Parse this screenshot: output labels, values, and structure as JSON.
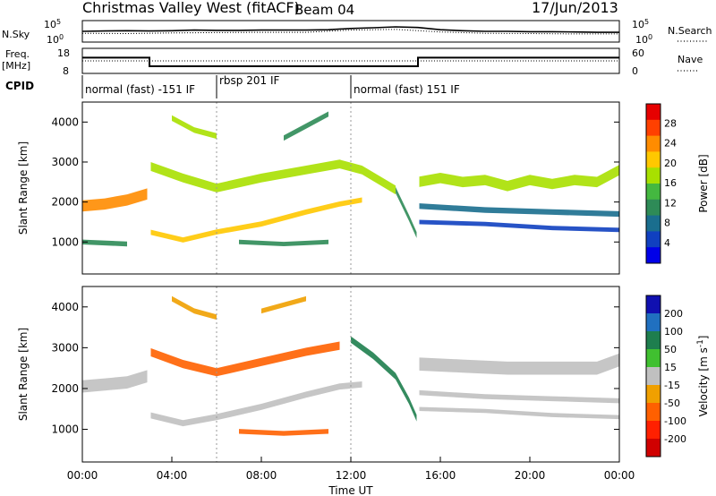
{
  "header": {
    "station": "Christmas Valley West (fitACF)",
    "beam": "Beam 04",
    "date": "17/Jun/2013"
  },
  "left_labels": {
    "nsky": "N.Sky",
    "freq_line1": "Freq.",
    "freq_line2": "[MHz]",
    "cpid": "CPID"
  },
  "right_labels": {
    "nsearch": "N.Search",
    "nave": "Nave"
  },
  "nsky_axis": {
    "ticks": [
      "10^5",
      "10^0"
    ]
  },
  "nsearch_axis": {
    "ticks": [
      "10^5",
      "10^0"
    ]
  },
  "freq_axis": {
    "ticks": [
      "18",
      "8"
    ]
  },
  "nave_axis": {
    "ticks": [
      "60",
      "0"
    ]
  },
  "cpid_segments": [
    {
      "label": "normal (fast) -151 IF"
    },
    {
      "label": "rbsp 201 IF"
    },
    {
      "label": "normal (fast) 151 IF"
    }
  ],
  "power_colorbar": {
    "label": "Power [dB]",
    "ticks": [
      "28",
      "24",
      "20",
      "16",
      "12",
      "8",
      "4"
    ],
    "colors": [
      "#e60000",
      "#ff4000",
      "#ff8c00",
      "#ffc800",
      "#a8e000",
      "#44b840",
      "#2e8b57",
      "#1a6e8e",
      "#1040c0",
      "#0000e8"
    ]
  },
  "velocity_colorbar": {
    "label": "Velocity [m s^-1]",
    "ticks": [
      "200",
      "100",
      "50",
      "15",
      "-15",
      "-50",
      "-100",
      "-200"
    ],
    "colors": [
      "#1010b0",
      "#2070c0",
      "#1e7e4e",
      "#40c030",
      "#c0c0c0",
      "#f0a000",
      "#ff6000",
      "#ff2000",
      "#d00000"
    ]
  },
  "chart_data": [
    {
      "type": "line",
      "panel": "N.Sky / N.Search",
      "x_unit": "hours UT",
      "xlim": [
        0,
        24
      ],
      "ylim_log10": [
        0,
        5
      ],
      "series": [
        {
          "key": "nsky",
          "x": [
            0,
            1,
            2,
            3,
            4,
            5,
            6,
            7,
            8,
            9,
            10,
            11,
            12,
            13,
            14,
            15,
            16,
            17,
            18,
            19,
            20,
            21,
            22,
            23,
            24
          ],
          "y_log10": [
            2.5,
            2.6,
            2.7,
            2.6,
            2.7,
            2.9,
            2.8,
            2.8,
            2.9,
            2.9,
            2.9,
            3.0,
            3.4,
            3.6,
            3.9,
            3.7,
            3.0,
            2.7,
            2.5,
            2.5,
            2.4,
            2.4,
            2.3,
            2.2,
            2.2
          ]
        },
        {
          "key": "nsearch",
          "x": [
            0,
            2,
            4,
            6,
            8,
            10,
            12,
            14,
            16,
            18,
            20,
            22,
            24
          ],
          "y_log10": [
            1.9,
            1.8,
            2.0,
            2.1,
            2.2,
            2.2,
            2.9,
            3.1,
            2.3,
            1.9,
            1.8,
            1.7,
            1.7
          ]
        }
      ]
    },
    {
      "type": "line",
      "panel": "Freq. / Nave",
      "x_unit": "hours UT",
      "xlim": [
        0,
        24
      ],
      "freq_ylim": [
        8,
        18
      ],
      "nave_ylim": [
        0,
        60
      ],
      "series": [
        {
          "key": "freq_mhz",
          "x": [
            0,
            3,
            3,
            15,
            15,
            24
          ],
          "y": [
            14.5,
            14.5,
            10.5,
            10.5,
            14.5,
            14.5
          ]
        },
        {
          "key": "nave",
          "x": [
            0,
            24
          ],
          "y": [
            30,
            30
          ]
        }
      ]
    },
    {
      "type": "heatmap",
      "panel": "Power",
      "x_label": "Time UT",
      "x_unit": "hours UT",
      "y_label": "Slant Range [km]",
      "y_unit": "km",
      "xlim": [
        0,
        24
      ],
      "ylim": [
        200,
        4500
      ],
      "x_ticks": [
        "00:00",
        "04:00",
        "08:00",
        "12:00",
        "16:00",
        "20:00",
        "00:00"
      ],
      "y_ticks": [
        1000,
        2000,
        3000,
        4000
      ],
      "bands": [
        {
          "points": [
            [
              0,
              1900
            ],
            [
              1,
              1950
            ],
            [
              2,
              2050
            ],
            [
              2.9,
              2200
            ]
          ],
          "width": 280,
          "value_db": 27
        },
        {
          "points": [
            [
              3,
              1250
            ],
            [
              4.5,
              1050
            ],
            [
              6,
              1250
            ],
            [
              8,
              1450
            ],
            [
              10,
              1750
            ],
            [
              11.5,
              1950
            ],
            [
              12.5,
              2050
            ]
          ],
          "width": 130,
          "value_db": 22
        },
        {
          "points": [
            [
              3,
              2900
            ],
            [
              4.5,
              2600
            ],
            [
              6,
              2350
            ],
            [
              8,
              2600
            ],
            [
              10,
              2800
            ],
            [
              11.5,
              2950
            ],
            [
              12.5,
              2800
            ],
            [
              14,
              2300
            ]
          ],
          "width": 220,
          "value_db": 18
        },
        {
          "points": [
            [
              14,
              2300
            ],
            [
              14.6,
              1600
            ],
            [
              15,
              1100
            ]
          ],
          "width": 150,
          "value_db": 14
        },
        {
          "points": [
            [
              15,
              2500
            ],
            [
              16,
              2600
            ],
            [
              17,
              2500
            ],
            [
              18,
              2550
            ],
            [
              19,
              2400
            ],
            [
              20,
              2550
            ],
            [
              21,
              2450
            ],
            [
              22,
              2550
            ],
            [
              23,
              2500
            ],
            [
              24,
              2800
            ]
          ],
          "width": 260,
          "value_db": 20
        },
        {
          "points": [
            [
              15,
              1900
            ],
            [
              18,
              1800
            ],
            [
              21,
              1750
            ],
            [
              24,
              1700
            ]
          ],
          "width": 140,
          "value_db": 11
        },
        {
          "points": [
            [
              15,
              1500
            ],
            [
              18,
              1450
            ],
            [
              21,
              1350
            ],
            [
              24,
              1300
            ]
          ],
          "width": 110,
          "value_db": 8
        },
        {
          "points": [
            [
              4,
              4100
            ],
            [
              5,
              3800
            ],
            [
              6,
              3650
            ]
          ],
          "width": 140,
          "value_db": 18
        },
        {
          "points": [
            [
              9,
              3600
            ],
            [
              10,
              3900
            ],
            [
              11,
              4200
            ]
          ],
          "width": 130,
          "value_db": 12
        },
        {
          "points": [
            [
              0,
              1000
            ],
            [
              2,
              950
            ]
          ],
          "width": 120,
          "value_db": 12
        },
        {
          "points": [
            [
              7,
              1000
            ],
            [
              9,
              950
            ],
            [
              11,
              1000
            ]
          ],
          "width": 110,
          "value_db": 14
        }
      ]
    },
    {
      "type": "heatmap",
      "panel": "Velocity",
      "x_label": "Time UT",
      "x_unit": "hours UT",
      "y_label": "Slant Range [km]",
      "y_unit": "km",
      "xlim": [
        0,
        24
      ],
      "ylim": [
        200,
        4500
      ],
      "x_ticks": [
        "00:00",
        "04:00",
        "08:00",
        "12:00",
        "16:00",
        "20:00",
        "00:00"
      ],
      "y_ticks": [
        1000,
        2000,
        3000,
        4000
      ],
      "bands": [
        {
          "points": [
            [
              0,
              2050
            ],
            [
              1,
              2100
            ],
            [
              2,
              2150
            ],
            [
              2.9,
              2300
            ]
          ],
          "width": 300,
          "value_ms": 0
        },
        {
          "points": [
            [
              3,
              1350
            ],
            [
              4.5,
              1150
            ],
            [
              6,
              1300
            ],
            [
              8,
              1550
            ],
            [
              10,
              1850
            ],
            [
              11.5,
              2050
            ],
            [
              12.5,
              2100
            ]
          ],
          "width": 150,
          "value_ms": 0
        },
        {
          "points": [
            [
              3,
              2900
            ],
            [
              4.5,
              2600
            ],
            [
              6,
              2400
            ],
            [
              8,
              2650
            ],
            [
              10,
              2900
            ],
            [
              11.5,
              3050
            ]
          ],
          "width": 200,
          "value_ms": -40
        },
        {
          "points": [
            [
              12,
              3200
            ],
            [
              13,
              2800
            ],
            [
              14,
              2300
            ],
            [
              14.6,
              1700
            ],
            [
              15,
              1200
            ]
          ],
          "width": 160,
          "value_ms": 40
        },
        {
          "points": [
            [
              15,
              2600
            ],
            [
              17,
              2550
            ],
            [
              19,
              2500
            ],
            [
              21,
              2500
            ],
            [
              23,
              2500
            ],
            [
              24,
              2700
            ]
          ],
          "width": 320,
          "value_ms": 0
        },
        {
          "points": [
            [
              15,
              1900
            ],
            [
              18,
              1800
            ],
            [
              21,
              1750
            ],
            [
              24,
              1700
            ]
          ],
          "width": 120,
          "value_ms": 0
        },
        {
          "points": [
            [
              15,
              1500
            ],
            [
              18,
              1450
            ],
            [
              21,
              1350
            ],
            [
              24,
              1300
            ]
          ],
          "width": 100,
          "value_ms": 0
        },
        {
          "points": [
            [
              7,
              950
            ],
            [
              9,
              900
            ],
            [
              11,
              950
            ]
          ],
          "width": 120,
          "value_ms": -60
        },
        {
          "points": [
            [
              4,
              4200
            ],
            [
              5,
              3900
            ],
            [
              6,
              3750
            ]
          ],
          "width": 130,
          "value_ms": -20
        },
        {
          "points": [
            [
              8,
              3900
            ],
            [
              10,
              4200
            ]
          ],
          "width": 120,
          "value_ms": -30
        }
      ]
    }
  ]
}
